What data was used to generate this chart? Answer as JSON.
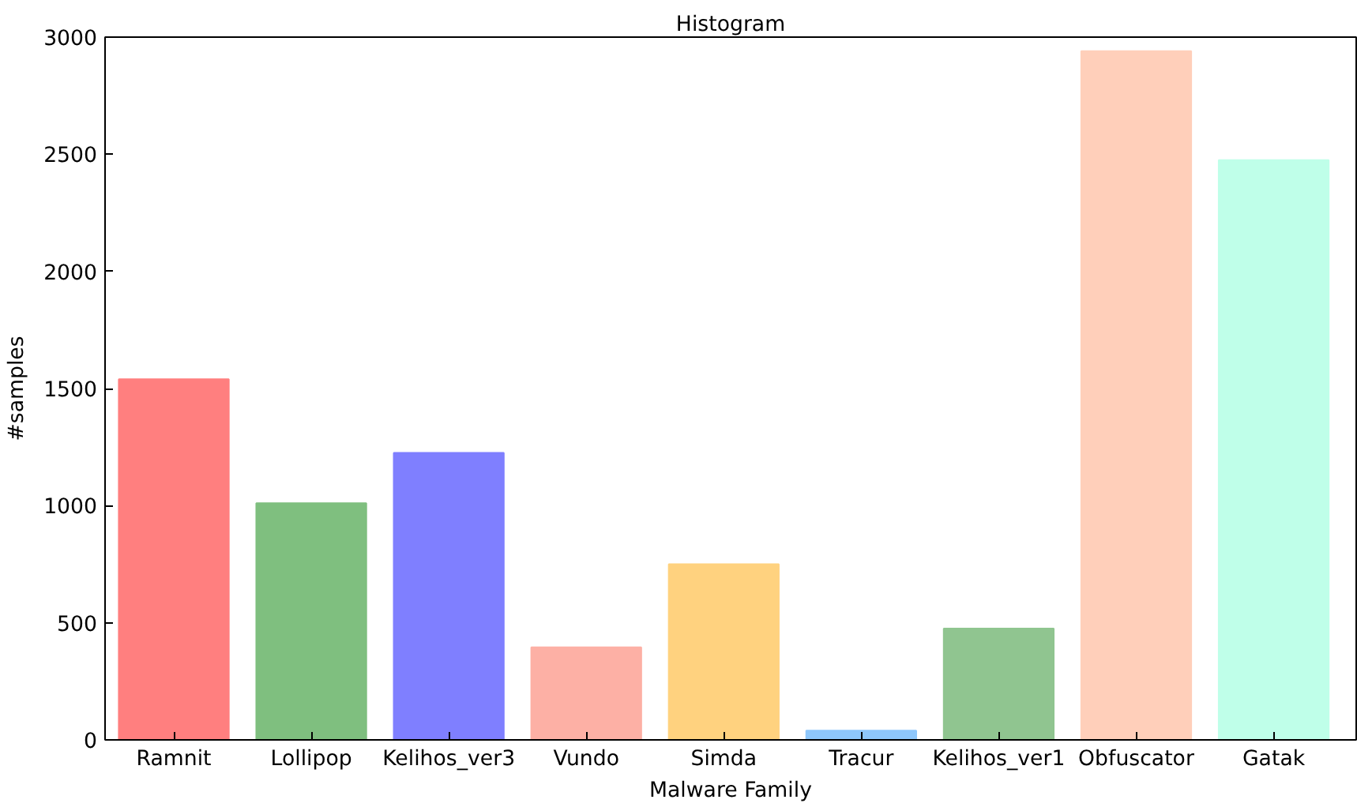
{
  "chart_data": {
    "type": "bar",
    "title": "Histogram",
    "xlabel": "Malware Family",
    "ylabel": "#samples",
    "categories": [
      "Ramnit",
      "Lollipop",
      "Kelihos_ver3",
      "Vundo",
      "Simda",
      "Tracur",
      "Kelihos_ver1",
      "Obfuscator",
      "Gatak"
    ],
    "values": [
      1540,
      1010,
      1225,
      395,
      750,
      40,
      475,
      2940,
      2475
    ],
    "colors": [
      "#ff7f7f",
      "#7fbf7f",
      "#7f7fff",
      "#fdb0a5",
      "#ffd27f",
      "#8ec7fb",
      "#90c590",
      "#ffcfba",
      "#bfffe9"
    ],
    "ylim": [
      0,
      3000
    ],
    "yticks": [
      0,
      500,
      1000,
      1500,
      2000,
      2500,
      3000
    ],
    "grid": false
  }
}
